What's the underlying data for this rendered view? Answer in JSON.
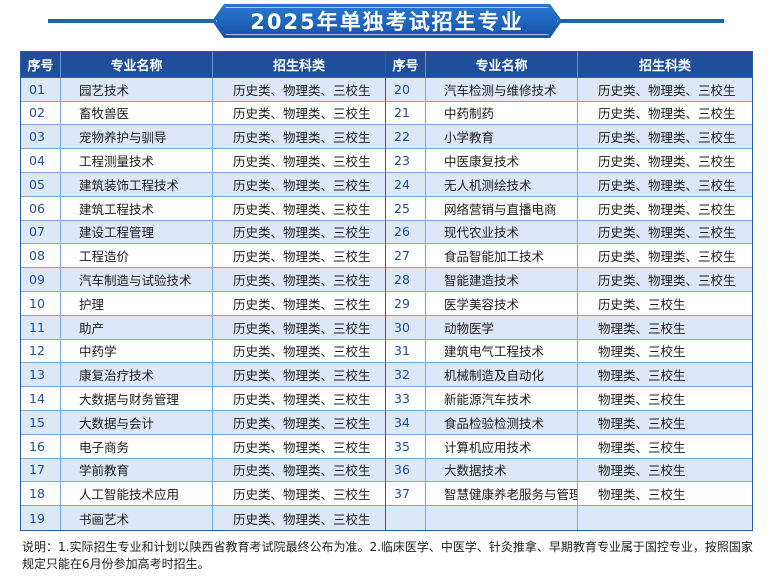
{
  "banner": {
    "title": "2025年单独考试招生专业"
  },
  "table": {
    "headers": {
      "no": "序号",
      "name": "专业名称",
      "subject": "招生科类"
    },
    "left_rows": [
      {
        "no": "01",
        "name": "园艺技术",
        "subject": "历史类、物理类、三校生"
      },
      {
        "no": "02",
        "name": "畜牧兽医",
        "subject": "历史类、物理类、三校生"
      },
      {
        "no": "03",
        "name": "宠物养护与驯导",
        "subject": "历史类、物理类、三校生"
      },
      {
        "no": "04",
        "name": "工程测量技术",
        "subject": "历史类、物理类、三校生"
      },
      {
        "no": "05",
        "name": "建筑装饰工程技术",
        "subject": "历史类、物理类、三校生"
      },
      {
        "no": "06",
        "name": "建筑工程技术",
        "subject": "历史类、物理类、三校生"
      },
      {
        "no": "07",
        "name": "建设工程管理",
        "subject": "历史类、物理类、三校生"
      },
      {
        "no": "08",
        "name": "工程造价",
        "subject": "历史类、物理类、三校生"
      },
      {
        "no": "09",
        "name": "汽车制造与试验技术",
        "subject": "历史类、物理类、三校生"
      },
      {
        "no": "10",
        "name": "护理",
        "subject": "历史类、物理类、三校生"
      },
      {
        "no": "11",
        "name": "助产",
        "subject": "历史类、物理类、三校生"
      },
      {
        "no": "12",
        "name": "中药学",
        "subject": "历史类、物理类、三校生"
      },
      {
        "no": "13",
        "name": "康复治疗技术",
        "subject": "历史类、物理类、三校生"
      },
      {
        "no": "14",
        "name": "大数据与财务管理",
        "subject": "历史类、物理类、三校生"
      },
      {
        "no": "15",
        "name": "大数据与会计",
        "subject": "历史类、物理类、三校生"
      },
      {
        "no": "16",
        "name": "电子商务",
        "subject": "历史类、物理类、三校生"
      },
      {
        "no": "17",
        "name": "学前教育",
        "subject": "历史类、物理类、三校生"
      },
      {
        "no": "18",
        "name": "人工智能技术应用",
        "subject": "历史类、物理类、三校生"
      },
      {
        "no": "19",
        "name": "书画艺术",
        "subject": "历史类、物理类、三校生"
      }
    ],
    "right_rows": [
      {
        "no": "20",
        "name": "汽车检测与维修技术",
        "subject": "历史类、物理类、三校生"
      },
      {
        "no": "21",
        "name": "中药制药",
        "subject": "历史类、物理类、三校生"
      },
      {
        "no": "22",
        "name": "小学教育",
        "subject": "历史类、物理类、三校生"
      },
      {
        "no": "23",
        "name": "中医康复技术",
        "subject": "历史类、物理类、三校生"
      },
      {
        "no": "24",
        "name": "无人机测绘技术",
        "subject": "历史类、物理类、三校生"
      },
      {
        "no": "25",
        "name": "网络营销与直播电商",
        "subject": "历史类、物理类、三校生"
      },
      {
        "no": "26",
        "name": "现代农业技术",
        "subject": "历史类、物理类、三校生"
      },
      {
        "no": "27",
        "name": "食品智能加工技术",
        "subject": "历史类、物理类、三校生"
      },
      {
        "no": "28",
        "name": "智能建造技术",
        "subject": "历史类、物理类、三校生"
      },
      {
        "no": "29",
        "name": "医学美容技术",
        "subject": "历史类、三校生"
      },
      {
        "no": "30",
        "name": "动物医学",
        "subject": "物理类、三校生"
      },
      {
        "no": "31",
        "name": "建筑电气工程技术",
        "subject": "物理类、三校生"
      },
      {
        "no": "32",
        "name": "机械制造及自动化",
        "subject": "物理类、三校生"
      },
      {
        "no": "33",
        "name": "新能源汽车技术",
        "subject": "物理类、三校生"
      },
      {
        "no": "34",
        "name": "食品检验检测技术",
        "subject": "物理类、三校生"
      },
      {
        "no": "35",
        "name": "计算机应用技术",
        "subject": "物理类、三校生"
      },
      {
        "no": "36",
        "name": "大数据技术",
        "subject": "物理类、三校生"
      },
      {
        "no": "37",
        "name": "智慧健康养老服务与管理",
        "subject": "物理类、三校生"
      },
      {
        "no": "",
        "name": "",
        "subject": ""
      }
    ]
  },
  "note": "说明：1.实际招生专业和计划以陕西省教育考试院最终公布为准。2.临床医学、中医学、针灸推拿、早期教育专业属于国控专业，按照国家规定只能在6月份参加高考时招生。",
  "colors": {
    "header_bg": "#1f4e9a",
    "banner": "#1f63b6",
    "row_alt": "#dce8f7"
  }
}
